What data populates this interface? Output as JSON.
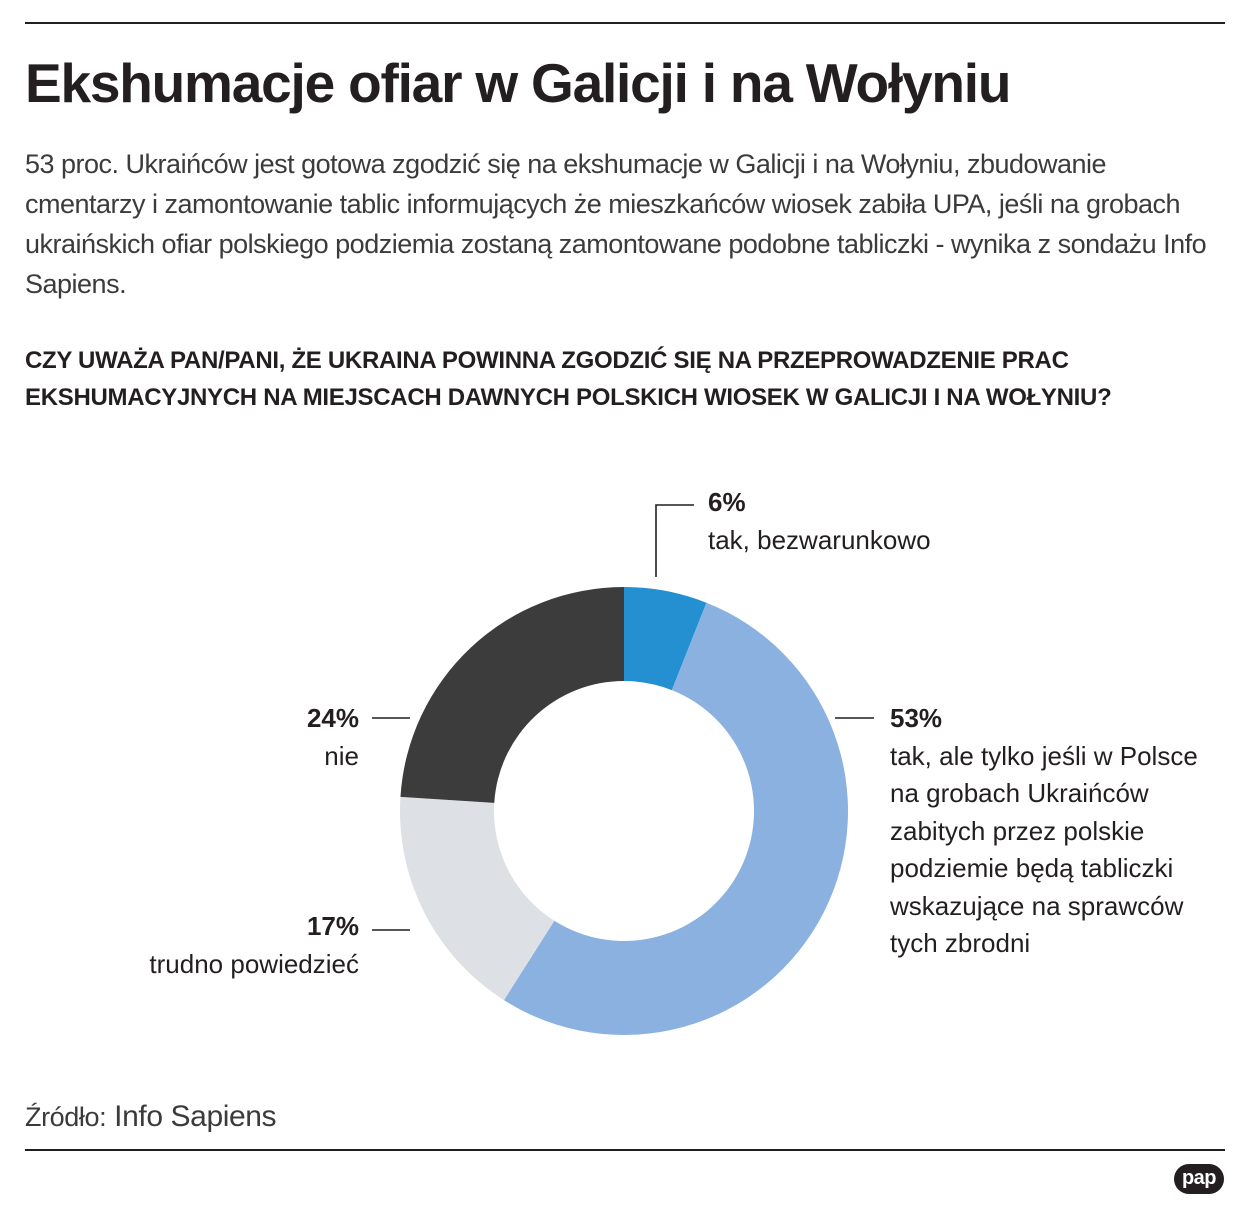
{
  "header": {
    "title": "Ekshumacje ofiar w Galicji i na Wołyniu",
    "intro": "53 proc. Ukraińców jest gotowa zgodzić się na ekshumacje w Galicji i na Wołyniu, zbudowanie cmentarzy i zamontowanie tablic informujących że mieszkańców wiosek zabiła UPA, jeśli na grobach ukraińskich ofiar polskiego podziemia zostaną zamontowane podobne tabliczki - wynika z sondażu Info Sapiens.",
    "question": "CZY UWAŻA PAN/PANI, ŻE UKRAINA POWINNA ZGODZIĆ SIĘ NA PRZEPROWADZENIE PRAC EKSHUMACYJNYCH NA MIEJSCACH DAWNYCH POLSKICH WIOSEK W GALICJI I NA WOŁYNIU?"
  },
  "chart_data": {
    "type": "pie",
    "title": "CZY UWAŻA PAN/PANI, ŻE UKRAINA POWINNA ZGODZIĆ SIĘ NA PRZEPROWADZENIE PRAC EKSHUMACYJNYCH NA MIEJSCACH DAWNYCH POLSKICH WIOSEK W GALICJI I NA WOŁYNIU?",
    "style": "donut",
    "start": "top, clockwise",
    "slices": [
      {
        "label": "tak, bezwarunkowo",
        "value": 6,
        "value_label": "6%",
        "color": "#2490d2"
      },
      {
        "label": "tak, ale tylko jeśli w Polsce na grobach Ukraińców zabitych przez polskie podziemie będą tabliczki wskazujące na sprawców tych zbrodni",
        "label_lines": [
          "tak, ale tylko jeśli w Polsce",
          "na grobach Ukraińców",
          "zabitych przez polskie",
          "podziemie będą tabliczki",
          "wskazujące na sprawców",
          "tych zbrodni"
        ],
        "value": 53,
        "value_label": "53%",
        "color": "#8ab1e0"
      },
      {
        "label": "trudno powiedzieć",
        "value": 17,
        "value_label": "17%",
        "color": "#dde1e5"
      },
      {
        "label": "nie",
        "value": 24,
        "value_label": "24%",
        "color": "#3c3c3c"
      }
    ]
  },
  "footer": {
    "source_label": "Źródło:",
    "source_name": "Info Sapiens",
    "logo_text": "pap"
  },
  "colors": {
    "text": "#231f20",
    "rule": "#231f20"
  }
}
